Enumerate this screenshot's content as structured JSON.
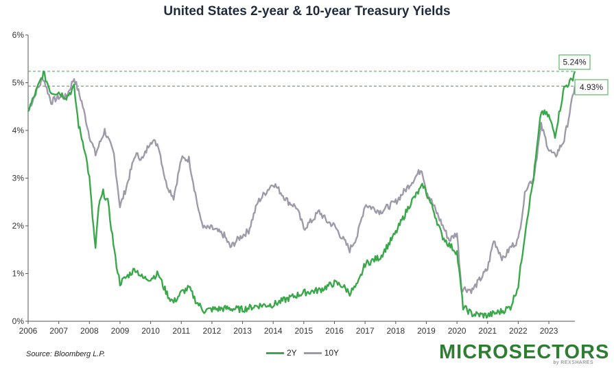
{
  "title": "United States 2-year & 10-year Treasury Yields",
  "source": "Source: Bloomberg L.P.",
  "brand": {
    "name": "MICROSECTORS",
    "sub": "by REXSHARES"
  },
  "colors": {
    "y2": "#3aa84a",
    "y10": "#9e9aaa",
    "ref_line": "#3aa84a"
  },
  "chart_data": {
    "type": "line",
    "title": "United States 2-year & 10-year Treasury Yields",
    "xlabel": "",
    "ylabel": "",
    "xlim": [
      2006.0,
      2023.85
    ],
    "ylim": [
      0,
      6
    ],
    "x_ticks": [
      "2006",
      "2007",
      "2008",
      "2009",
      "2010",
      "2011",
      "2012",
      "2013",
      "2014",
      "2015",
      "2016",
      "2017",
      "2018",
      "2019",
      "2020",
      "2021",
      "2022",
      "2023"
    ],
    "y_ticks": [
      "0%",
      "1%",
      "2%",
      "3%",
      "4%",
      "5%",
      "6%"
    ],
    "legend_position": "bottom-center",
    "grid": false,
    "reference_lines": [
      {
        "value": 5.24,
        "label": "5.24%"
      },
      {
        "value": 4.93,
        "label": "4.93%"
      }
    ],
    "series": [
      {
        "name": "2Y",
        "x": [
          2006.0,
          2006.25,
          2006.5,
          2006.75,
          2007.0,
          2007.25,
          2007.5,
          2007.65,
          2007.85,
          2008.0,
          2008.1,
          2008.2,
          2008.3,
          2008.45,
          2008.6,
          2008.75,
          2008.85,
          2009.0,
          2009.25,
          2009.5,
          2009.75,
          2010.0,
          2010.25,
          2010.4,
          2010.6,
          2010.75,
          2011.0,
          2011.25,
          2011.5,
          2011.75,
          2012.0,
          2012.5,
          2013.0,
          2013.5,
          2014.0,
          2014.5,
          2015.0,
          2015.5,
          2016.0,
          2016.25,
          2016.5,
          2016.75,
          2017.0,
          2017.5,
          2018.0,
          2018.5,
          2018.9,
          2019.25,
          2019.5,
          2019.75,
          2020.0,
          2020.2,
          2020.5,
          2021.0,
          2021.5,
          2021.75,
          2022.0,
          2022.25,
          2022.5,
          2022.75,
          2023.0,
          2023.2,
          2023.5,
          2023.75,
          2023.85
        ],
        "values": [
          4.4,
          4.8,
          5.2,
          4.8,
          4.8,
          4.7,
          4.9,
          4.1,
          3.6,
          3.0,
          2.2,
          1.5,
          2.4,
          2.7,
          2.5,
          1.8,
          1.3,
          0.8,
          0.95,
          1.1,
          0.9,
          0.9,
          1.0,
          0.75,
          0.5,
          0.4,
          0.6,
          0.7,
          0.4,
          0.22,
          0.25,
          0.27,
          0.25,
          0.33,
          0.35,
          0.48,
          0.6,
          0.65,
          0.8,
          0.75,
          0.6,
          0.75,
          1.2,
          1.35,
          1.85,
          2.5,
          2.85,
          2.3,
          1.8,
          1.6,
          1.45,
          0.3,
          0.15,
          0.12,
          0.22,
          0.3,
          0.75,
          2.0,
          3.0,
          4.4,
          4.3,
          3.9,
          4.9,
          5.05,
          5.24
        ]
      },
      {
        "name": "10Y",
        "x": [
          2006.0,
          2006.25,
          2006.5,
          2006.75,
          2007.0,
          2007.25,
          2007.5,
          2007.75,
          2008.0,
          2008.2,
          2008.5,
          2008.8,
          2009.0,
          2009.2,
          2009.5,
          2009.75,
          2010.0,
          2010.25,
          2010.5,
          2010.75,
          2011.0,
          2011.25,
          2011.6,
          2011.75,
          2012.0,
          2012.4,
          2012.6,
          2012.9,
          2013.2,
          2013.5,
          2013.75,
          2014.0,
          2014.25,
          2014.5,
          2014.75,
          2015.0,
          2015.25,
          2015.5,
          2015.75,
          2016.0,
          2016.25,
          2016.5,
          2016.75,
          2017.0,
          2017.5,
          2018.0,
          2018.5,
          2018.85,
          2019.0,
          2019.5,
          2019.75,
          2020.0,
          2020.15,
          2020.5,
          2021.0,
          2021.2,
          2021.5,
          2021.75,
          2022.0,
          2022.25,
          2022.5,
          2022.75,
          2023.0,
          2023.2,
          2023.5,
          2023.75,
          2023.85
        ],
        "values": [
          4.4,
          4.8,
          5.1,
          4.6,
          4.7,
          4.7,
          5.1,
          4.6,
          3.9,
          3.5,
          4.0,
          3.5,
          2.4,
          2.8,
          3.5,
          3.4,
          3.8,
          3.7,
          2.9,
          2.6,
          3.4,
          3.4,
          2.2,
          1.95,
          1.95,
          1.8,
          1.55,
          1.75,
          1.9,
          2.5,
          2.7,
          2.9,
          2.7,
          2.5,
          2.4,
          1.95,
          2.1,
          2.3,
          2.1,
          2.0,
          1.75,
          1.5,
          1.8,
          2.45,
          2.3,
          2.5,
          2.9,
          3.2,
          2.75,
          2.05,
          1.7,
          1.85,
          0.7,
          0.65,
          1.1,
          1.7,
          1.3,
          1.55,
          1.7,
          2.8,
          3.0,
          4.1,
          3.6,
          3.45,
          3.8,
          4.6,
          4.93
        ]
      }
    ]
  }
}
